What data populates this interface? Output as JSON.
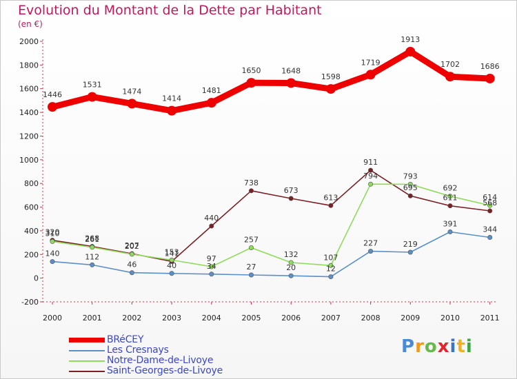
{
  "header": {
    "title": "Evolution du Montant de la Dette par Habitant",
    "subtitle": "(en €)"
  },
  "logo": {
    "letters": [
      "P",
      "r",
      "o",
      "x",
      "i",
      "t",
      "i"
    ],
    "colors": [
      "#4a8ad6",
      "#f09a1a",
      "#66b94a",
      "#e2262c",
      "#3b73c9",
      "#f0b41a",
      "#3fa63f"
    ]
  },
  "chart_data": {
    "type": "line",
    "title": "Evolution du Montant de la Dette par Habitant",
    "subtitle": "(en €)",
    "x": [
      "2000",
      "2001",
      "2002",
      "2003",
      "2004",
      "2005",
      "2006",
      "2007",
      "2008",
      "2009",
      "2010",
      "2011"
    ],
    "ylim": [
      -200,
      2000
    ],
    "yticks": [
      "-200",
      "0",
      "200",
      "400",
      "600",
      "800",
      "1000",
      "1200",
      "1400",
      "1600",
      "1800",
      "2000"
    ],
    "grid": false,
    "legend_position": "bottom-left",
    "series": [
      {
        "name": "BRéCEY",
        "color": "#ee0000",
        "values": [
          1446,
          1531,
          1474,
          1414,
          1481,
          1650,
          1648,
          1598,
          1719,
          1913,
          1702,
          1686
        ],
        "labels": [
          "1446",
          "1531",
          "1474",
          "1414",
          "1481",
          "1650",
          "1648",
          "1598",
          "1719",
          "1913",
          "1702",
          "1686"
        ]
      },
      {
        "name": "Les Cresnays",
        "color": "#5a8fc8",
        "values": [
          140,
          112,
          46,
          40,
          34,
          27,
          20,
          12,
          227,
          219,
          391,
          344
        ],
        "labels": [
          "140",
          "112",
          "46",
          "40",
          "34",
          "27",
          "20",
          "12",
          "227",
          "219",
          "391",
          "344"
        ]
      },
      {
        "name": "Notre-Dame-de-Livoye",
        "color": "#8fdb5a",
        "values": [
          310,
          261,
          202,
          153,
          97,
          257,
          132,
          107,
          794,
          793,
          692,
          614
        ],
        "labels": [
          "310",
          "261",
          "202",
          "153",
          "97",
          "257",
          "132",
          "107",
          "794",
          "793",
          "692",
          "614"
        ]
      },
      {
        "name": "Saint-Georges-de-Livoye",
        "color": "#7a1f24",
        "values": [
          320,
          268,
          207,
          141,
          440,
          738,
          673,
          613,
          911,
          695,
          611,
          568
        ],
        "labels": [
          "320",
          "268",
          "207",
          "141",
          "440",
          "738",
          "673",
          "613",
          "911",
          "695",
          "611",
          "568"
        ]
      }
    ]
  }
}
